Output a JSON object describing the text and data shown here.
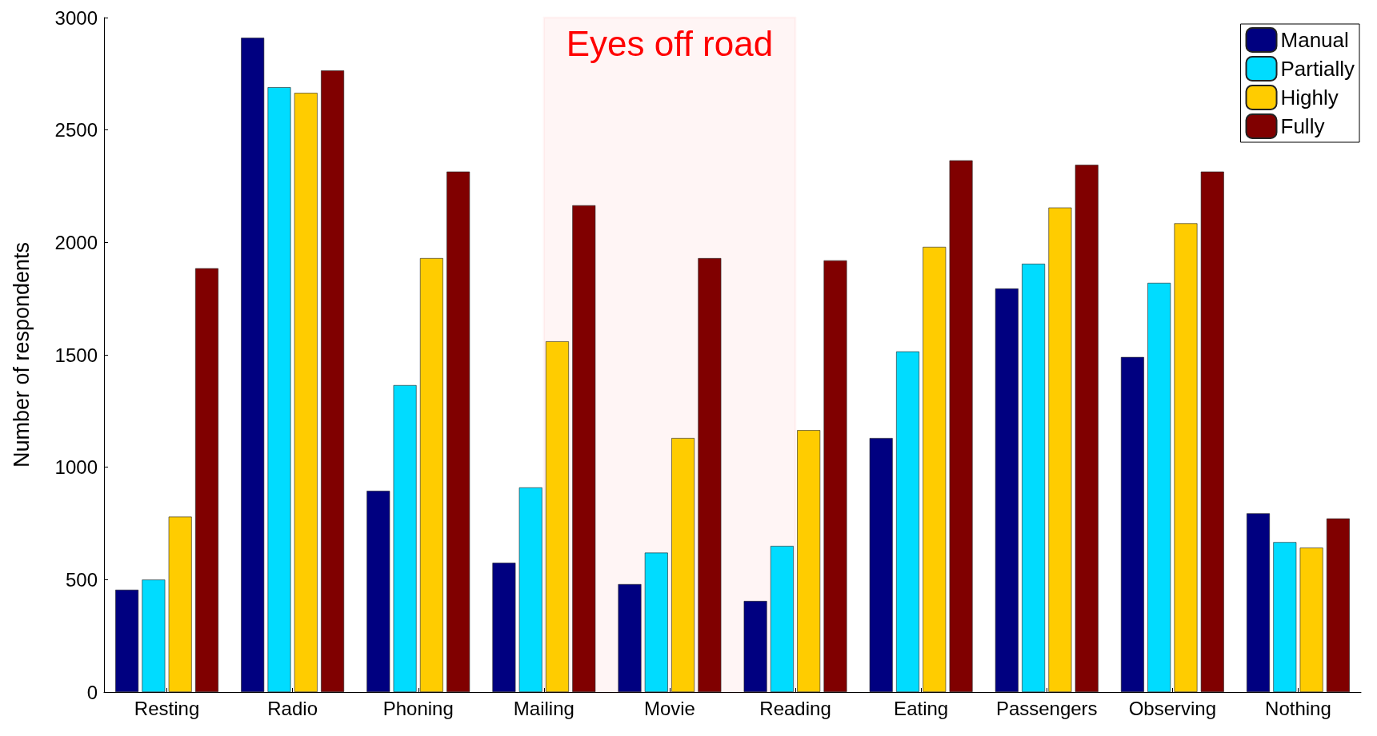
{
  "chart_data": {
    "type": "bar",
    "ylabel": "Number of respondents",
    "categories": [
      "Resting",
      "Radio",
      "Phoning",
      "Mailing",
      "Movie",
      "Reading",
      "Eating",
      "Passengers",
      "Observing",
      "Nothing"
    ],
    "series": [
      {
        "name": "Manual",
        "color": "#000080",
        "values": [
          455,
          2910,
          895,
          575,
          480,
          405,
          1130,
          1795,
          1490,
          795
        ]
      },
      {
        "name": "Partially",
        "color": "#00dcff",
        "values": [
          500,
          2690,
          1365,
          910,
          620,
          650,
          1515,
          1905,
          1820,
          667
        ]
      },
      {
        "name": "Highly",
        "color": "#ffcc00",
        "values": [
          780,
          2665,
          1930,
          1560,
          1130,
          1165,
          1980,
          2155,
          2085,
          642
        ]
      },
      {
        "name": "Fully",
        "color": "#800000",
        "values": [
          1885,
          2765,
          2315,
          2165,
          1930,
          1920,
          2365,
          2345,
          2315,
          772
        ]
      }
    ],
    "ylim": [
      0,
      3000
    ],
    "yticks": [
      0,
      500,
      1000,
      1500,
      2000,
      2500,
      3000
    ],
    "bands": [
      {
        "axis": "x",
        "from": "Mailing",
        "to": "Reading",
        "label": "Eyes off road",
        "color": "#ff0000"
      }
    ],
    "grid": false,
    "legend": "top right"
  }
}
